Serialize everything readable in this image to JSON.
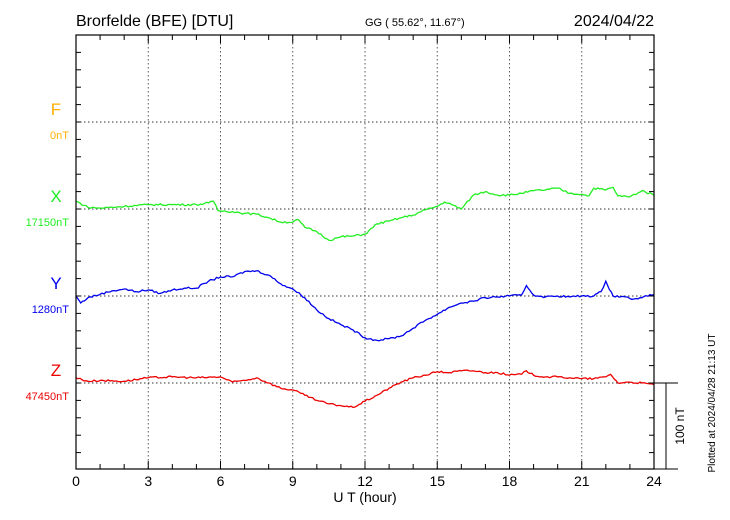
{
  "chart_data": {
    "type": "line",
    "title": "Brorfelde (BFE)  [DTU]",
    "subtitle": "GG ( 55.62°,  11.67°)",
    "date": "2024/04/22",
    "xlabel": "U T (hour)",
    "xlim": [
      0,
      24
    ],
    "xticks": [
      "0",
      "3",
      "6",
      "9",
      "12",
      "15",
      "18",
      "21",
      "24"
    ],
    "scale_bar_label": "100 nT",
    "scale_bar_nT": 100,
    "plotted_note": "Plotted at 2024/04/28 21:13 UT",
    "grid": true,
    "series": [
      {
        "name": "F",
        "baseline_label": "0nT",
        "color": "#ffb000",
        "x": [],
        "values": []
      },
      {
        "name": "X",
        "baseline_label": "17150nT",
        "color": "#22ee22",
        "x": [
          0,
          0.5,
          1,
          2,
          3,
          4,
          5,
          5.5,
          5.7,
          5.9,
          6.5,
          7,
          7.5,
          8,
          8.5,
          9,
          9.2,
          9.5,
          10,
          10.5,
          11,
          11.5,
          12,
          12.5,
          13,
          13.5,
          14,
          14.5,
          15,
          15.3,
          15.6,
          16,
          16.5,
          17,
          17.5,
          18,
          18.5,
          19,
          19.5,
          20,
          20.5,
          21,
          21.3,
          21.5,
          22,
          22.3,
          22.5,
          23,
          23.5,
          24
        ],
        "values": [
          9,
          2,
          1,
          3,
          5,
          5,
          5,
          7,
          9,
          -2,
          -3,
          -5,
          -6,
          -10,
          -15,
          -15,
          -12,
          -21,
          -26,
          -36,
          -32,
          -31,
          -29,
          -17,
          -14,
          -10,
          -7,
          -1,
          3,
          8,
          5,
          0,
          16,
          20,
          16,
          16,
          18,
          21,
          22,
          24,
          18,
          17,
          15,
          24,
          22,
          25,
          15,
          14,
          21,
          16
        ]
      },
      {
        "name": "Y",
        "baseline_label": "1280nT",
        "color": "#0000ee",
        "x": [
          0,
          0.2,
          0.5,
          1,
          1.5,
          2,
          2.5,
          3,
          3.5,
          4,
          4.5,
          5,
          5.5,
          6,
          6.5,
          7,
          7.5,
          8,
          8.5,
          9,
          9.5,
          10,
          10.5,
          11,
          11.5,
          12,
          12.5,
          13,
          13.5,
          14,
          14.5,
          15,
          15.5,
          16,
          16.5,
          17,
          17.5,
          18,
          18.5,
          18.7,
          19,
          19.5,
          20,
          20.5,
          21,
          21.5,
          21.8,
          22,
          22.3,
          22.8,
          23,
          23.5,
          24
        ],
        "values": [
          0,
          -8,
          -2,
          2,
          6,
          8,
          5,
          7,
          3,
          7,
          9,
          9,
          17,
          22,
          22,
          28,
          29,
          24,
          14,
          8,
          -2,
          -16,
          -26,
          -33,
          -39,
          -48,
          -51,
          -49,
          -46,
          -37,
          -28,
          -21,
          -13,
          -8,
          -6,
          -2,
          -1,
          0,
          1,
          12,
          1,
          -1,
          0,
          -1,
          0,
          0,
          5,
          17,
          0,
          -1,
          -3,
          -2,
          2
        ]
      },
      {
        "name": "Z",
        "baseline_label": "47450nT",
        "color": "#ee0000",
        "x": [
          0,
          0.5,
          1,
          2,
          3,
          4,
          5,
          6,
          6.5,
          7,
          7.5,
          8,
          8.5,
          9,
          9.5,
          10,
          10.5,
          11,
          11.5,
          12,
          12.5,
          13,
          13.5,
          14,
          14.5,
          15,
          15.5,
          16,
          16.5,
          17,
          17.5,
          18,
          18.5,
          18.7,
          19,
          19.5,
          20,
          20.5,
          21,
          21.5,
          22,
          22.2,
          22.5,
          23,
          23.5,
          24
        ],
        "values": [
          6,
          2,
          3,
          2,
          6,
          7,
          6,
          7,
          1,
          3,
          6,
          0,
          -6,
          -8,
          -14,
          -20,
          -24,
          -26,
          -28,
          -21,
          -14,
          -6,
          1,
          6,
          9,
          13,
          12,
          14,
          14,
          12,
          12,
          9,
          10,
          14,
          9,
          7,
          7,
          6,
          5,
          5,
          7,
          10,
          0,
          1,
          0,
          -2
        ]
      }
    ]
  }
}
